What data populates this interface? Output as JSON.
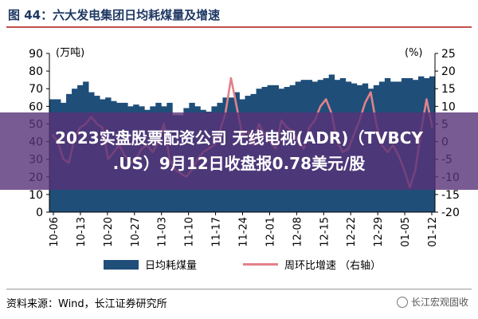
{
  "figure": {
    "title": "图 44：六大发电集团日均耗煤量及增速",
    "source": "资料来源：Wind，长江证券研究所",
    "watermark": "长江宏观固收"
  },
  "banner": {
    "line1": "2023实盘股票配资公司 无线电视(ADR)（TVBCY",
    "line2": ".US）9月12日收盘报0.78美元/股"
  },
  "legend": {
    "bar_label": "日均耗煤量",
    "line_label": "周环比增速 （右轴）"
  },
  "colors": {
    "bar": "#1f4e79",
    "line": "#e3818a",
    "title": "#1f3864",
    "banner": "#583278"
  },
  "chart_data": {
    "type": "bar",
    "left_unit": "(万吨)",
    "right_unit": "(%)",
    "ylim_left": [
      0,
      90
    ],
    "ylim_right": [
      -20,
      25
    ],
    "yticks_left": [
      0,
      10,
      20,
      30,
      40,
      50,
      60,
      70,
      80,
      90
    ],
    "yticks_right": [
      -20,
      -15,
      -10,
      -5,
      0,
      5,
      10,
      15,
      20,
      25
    ],
    "x_tick_labels": [
      "10-06",
      "10-13",
      "10-20",
      "10-27",
      "11-03",
      "11-10",
      "11-17",
      "11-24",
      "12-01",
      "12-08",
      "12-15",
      "12-22",
      "12-29",
      "01-05",
      "01-12"
    ],
    "series": [
      {
        "name": "日均耗煤量",
        "kind": "bar",
        "axis": "left",
        "values": [
          64,
          64,
          62,
          67,
          70,
          72,
          74,
          68,
          66,
          64,
          65,
          63,
          62,
          62,
          60,
          61,
          60,
          58,
          60,
          62,
          60,
          62,
          55,
          55,
          59,
          62,
          60,
          58,
          57,
          60,
          62,
          65,
          65,
          68,
          64,
          66,
          67,
          70,
          71,
          72,
          72,
          70,
          71,
          72,
          74,
          75,
          75,
          74,
          75,
          76,
          78,
          75,
          76,
          74,
          73,
          72,
          73,
          70,
          72,
          74,
          76,
          74,
          74,
          76,
          76,
          75,
          77,
          76,
          77
        ]
      },
      {
        "name": "周环比增速 （右轴）",
        "kind": "line",
        "axis": "right",
        "values": [
          2,
          0,
          -5,
          -6,
          1,
          4,
          5,
          7,
          5,
          4,
          -5,
          -3,
          -1,
          -4,
          -6,
          -5,
          -2,
          -1,
          -3,
          0,
          5,
          -5,
          -8,
          -9,
          -10,
          -8,
          -5,
          -3,
          -2,
          -1,
          3,
          8,
          18,
          10,
          2,
          3,
          -1,
          5,
          2,
          0,
          -2,
          6,
          4,
          3,
          0,
          -2,
          4,
          6,
          10,
          12,
          8,
          0,
          -3,
          -2,
          2,
          6,
          11,
          14,
          5,
          -1,
          -3,
          -1,
          -4,
          -8,
          -13,
          -8,
          3,
          12,
          4
        ]
      }
    ]
  }
}
